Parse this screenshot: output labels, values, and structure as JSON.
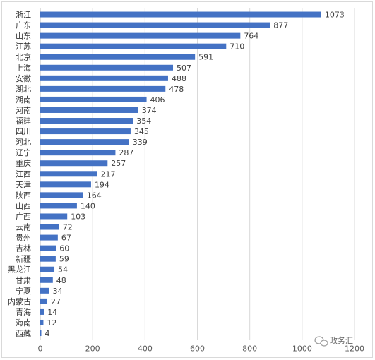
{
  "chart_data": {
    "type": "bar",
    "orientation": "horizontal",
    "categories": [
      "浙江",
      "广东",
      "山东",
      "江苏",
      "北京",
      "上海",
      "安徽",
      "湖北",
      "湖南",
      "河南",
      "福建",
      "四川",
      "河北",
      "辽宁",
      "重庆",
      "江西",
      "天津",
      "陕西",
      "山西",
      "广西",
      "云南",
      "贵州",
      "吉林",
      "新疆",
      "黑龙江",
      "甘肃",
      "宁夏",
      "内蒙古",
      "青海",
      "海南",
      "西藏"
    ],
    "values": [
      1073,
      877,
      764,
      710,
      591,
      507,
      488,
      478,
      406,
      374,
      354,
      345,
      339,
      287,
      257,
      217,
      194,
      164,
      140,
      103,
      72,
      67,
      60,
      59,
      54,
      48,
      34,
      27,
      14,
      12,
      4
    ],
    "xlim": [
      0,
      1200
    ],
    "xticks": [
      0,
      200,
      400,
      600,
      800,
      1000,
      1200
    ],
    "grid": true,
    "legend": "none",
    "bar_color": "#4472c4"
  },
  "watermark": {
    "text": "政务汇",
    "icon": "wechat-icon"
  }
}
